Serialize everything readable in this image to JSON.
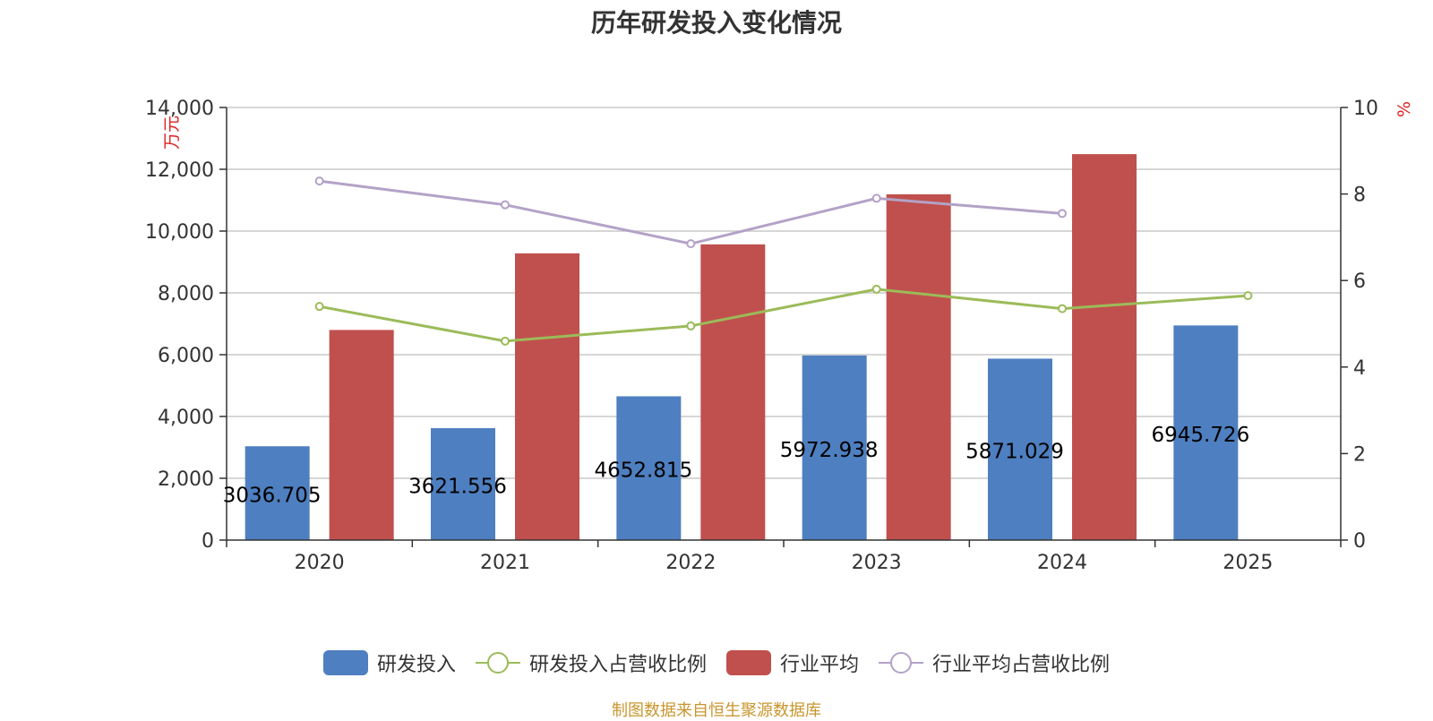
{
  "colors": {
    "rd_invest": "#4e7fc0",
    "rd_ratio": "#9bbb59",
    "industry_avg": "#c0504d",
    "industry_ratio": "#b3a2c7",
    "axis_unit": "#e01f1f",
    "source": "#c8962e"
  },
  "chart_data": {
    "type": "bar",
    "title": "历年研发投入变化情况",
    "categories": [
      "2020",
      "2021",
      "2022",
      "2023",
      "2024",
      "2025"
    ],
    "y_left": {
      "unit": "万元",
      "range": [
        0,
        14000
      ],
      "ticks": [
        "0",
        "2,000",
        "4,000",
        "6,000",
        "8,000",
        "10,000",
        "12,000",
        "14,000"
      ]
    },
    "y_right": {
      "unit": "%",
      "range": [
        0,
        10
      ],
      "ticks": [
        "0",
        "2",
        "4",
        "6",
        "8",
        "10"
      ]
    },
    "grid": true,
    "legend_position": "bottom",
    "series": [
      {
        "name": "研发投入",
        "kind": "bar",
        "axis": "left",
        "values": [
          3036.705,
          3621.556,
          4652.815,
          5972.938,
          5871.029,
          6945.726
        ],
        "labels": [
          "3036.705",
          "3621.556",
          "4652.815",
          "5972.938",
          "5871.029",
          "6945.726"
        ]
      },
      {
        "name": "研发投入占营收比例",
        "kind": "line",
        "axis": "right",
        "values": [
          5.4,
          4.6,
          4.95,
          5.8,
          5.35,
          5.65
        ]
      },
      {
        "name": "行业平均",
        "kind": "bar",
        "axis": "left",
        "values": [
          6800,
          9280,
          9570,
          11190,
          12490,
          null
        ]
      },
      {
        "name": "行业平均占营收比例",
        "kind": "line",
        "axis": "right",
        "values": [
          8.3,
          7.75,
          6.85,
          7.9,
          7.55,
          null
        ]
      }
    ]
  },
  "source_note": "制图数据来自恒生聚源数据库"
}
